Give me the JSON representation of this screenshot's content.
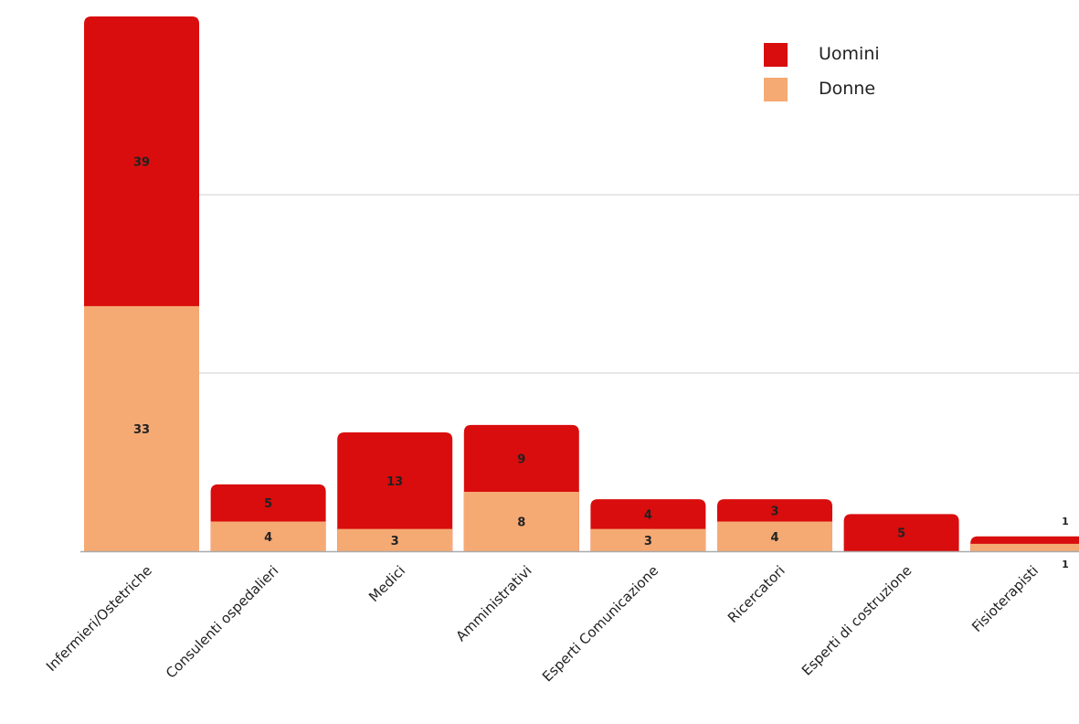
{
  "colors": {
    "uomini": "#d90d0d",
    "donne": "#f5aa74",
    "grid": "#cfcfcf",
    "axis": "#aaaaaa",
    "label": "#222222"
  },
  "legend": {
    "position": "top-right",
    "items": [
      {
        "label": "Uomini",
        "color": "#d90d0d"
      },
      {
        "label": "Donne",
        "color": "#f5aa74"
      }
    ]
  },
  "chart_data": {
    "type": "bar",
    "stacked": true,
    "title": "",
    "xlabel": "",
    "ylabel": "",
    "ylim": [
      0,
      72
    ],
    "grid": true,
    "categories": [
      "Infermieri/Ostetriche",
      "Consulenti ospedalieri",
      "Medici",
      "Amministrativi",
      "Esperti Comunicazione",
      "Ricercatori",
      "Esperti di costruzione",
      "Fisioterapisti"
    ],
    "series": [
      {
        "name": "Donne",
        "values": [
          33,
          4,
          3,
          8,
          3,
          4,
          0,
          1
        ]
      },
      {
        "name": "Uomini",
        "values": [
          39,
          5,
          13,
          9,
          4,
          3,
          5,
          1
        ]
      }
    ]
  }
}
